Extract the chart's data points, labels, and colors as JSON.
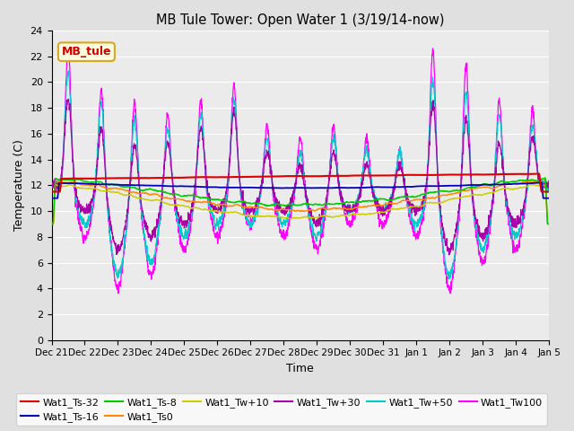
{
  "title": "MB Tule Tower: Open Water 1 (3/19/14-now)",
  "xlabel": "Time",
  "ylabel": "Temperature (C)",
  "ylim": [
    0,
    24
  ],
  "yticks": [
    0,
    2,
    4,
    6,
    8,
    10,
    12,
    14,
    16,
    18,
    20,
    22,
    24
  ],
  "background_color": "#e0e0e0",
  "plot_bg_color": "#ebebeb",
  "grid_color": "#ffffff",
  "legend_label": "MB_tule",
  "series_colors": {
    "Wat1_Ts-32": "#dd0000",
    "Wat1_Ts-16": "#0000bb",
    "Wat1_Ts-8": "#00cc00",
    "Wat1_Ts0": "#ff8800",
    "Wat1_Tw+10": "#cccc00",
    "Wat1_Tw+30": "#aa00aa",
    "Wat1_Tw+50": "#00cccc",
    "Wat1_Tw100": "#ff00ff"
  },
  "xtick_labels": [
    "Dec 21",
    "Dec 22",
    "Dec 23",
    "Dec 24",
    "Dec 25",
    "Dec 26",
    "Dec 27",
    "Dec 28",
    "Dec 29",
    "Dec 30",
    "Dec 31",
    "Jan 1",
    "Jan 2",
    "Jan 3",
    "Jan 4",
    "Jan 5"
  ],
  "num_points": 2000,
  "figsize": [
    6.4,
    4.8
  ],
  "dpi": 100
}
